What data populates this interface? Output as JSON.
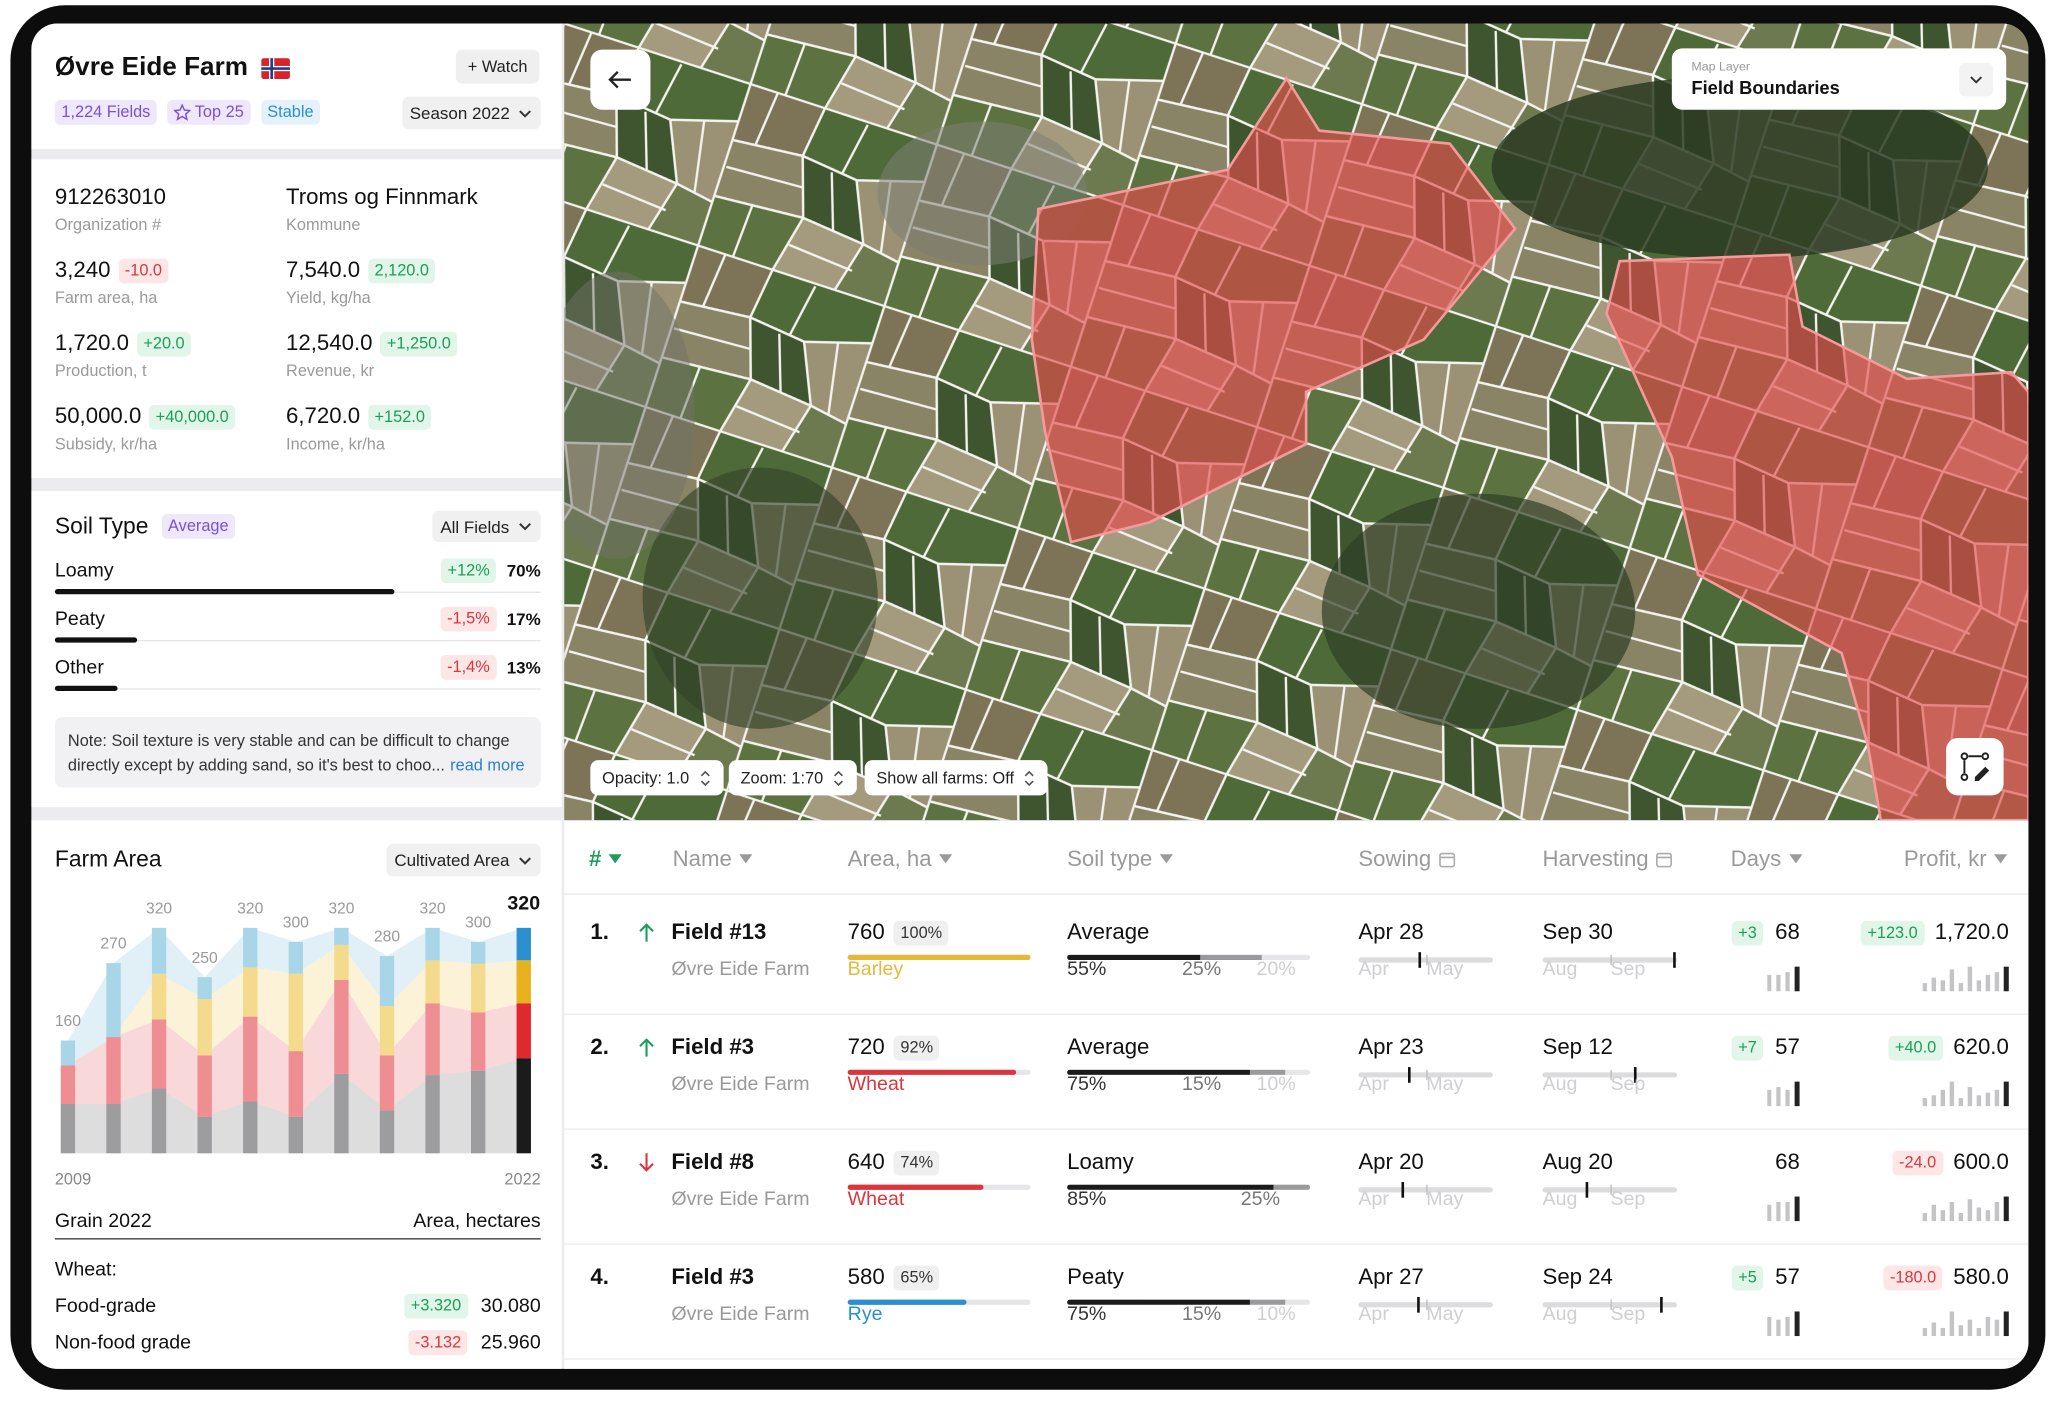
{
  "header": {
    "title": "Øvre Eide Farm",
    "watch": "+ Watch",
    "tags": [
      "1,224 Fields",
      "Top 25",
      "Stable"
    ],
    "season": "Season 2022"
  },
  "stats": [
    {
      "value": "912263010",
      "label": "Organization #"
    },
    {
      "value": "Troms og Finnmark",
      "label": "Kommune"
    },
    {
      "value": "3,240",
      "delta": "-10.0",
      "label": "Farm area, ha"
    },
    {
      "value": "7,540.0",
      "delta": "2,120.0",
      "label": "Yield, kg/ha"
    },
    {
      "value": "1,720.0",
      "delta": "+20.0",
      "label": "Production, t"
    },
    {
      "value": "12,540.0",
      "delta": "+1,250.0",
      "label": "Revenue, kr"
    },
    {
      "value": "50,000.0",
      "delta": "+40,000.0",
      "label": "Subsidy, kr/ha"
    },
    {
      "value": "6,720.0",
      "delta": "+152.0",
      "label": "Income, kr/ha"
    }
  ],
  "soil": {
    "title": "Soil Type",
    "badge": "Average",
    "filter": "All Fields",
    "rows": [
      {
        "name": "Loamy",
        "change": "+12%",
        "share": "70%"
      },
      {
        "name": "Peaty",
        "change": "-1,5%",
        "share": "17%"
      },
      {
        "name": "Other",
        "change": "-1,4%",
        "share": "13%"
      }
    ],
    "note": "Note: Soil texture is very stable and can be difficult to change directly except by adding sand, so it's best to choo...",
    "read_more": "read more"
  },
  "farm_area": {
    "title": "Farm Area",
    "filter": "Cultivated Area",
    "footer_left": "Grain 2022",
    "footer_right": "Area, hectares",
    "group": "Wheat:",
    "rows": [
      {
        "name": "Food-grade",
        "change": "+3.320",
        "value": "30.080"
      },
      {
        "name": "Non-food grade",
        "change": "-3.132",
        "value": "25.960"
      }
    ]
  },
  "chart_data": {
    "type": "bar",
    "stacked": true,
    "categories": [
      "2009",
      null,
      null,
      null,
      null,
      null,
      null,
      null,
      null,
      null,
      "2022"
    ],
    "series": [
      {
        "color": "#9d9d9f",
        "highlight_color": "#1b1b1b",
        "values": [
          70,
          70,
          92,
          52,
          74,
          52,
          113,
          61,
          111,
          117,
          135
        ]
      },
      {
        "color": "#ee8e93",
        "highlight_color": "#e0282e",
        "values": [
          55,
          95,
          98,
          87,
          120,
          93,
          133,
          78,
          102,
          83,
          78
        ]
      },
      {
        "color": "#f4da8c",
        "highlight_color": "#e8b21e",
        "values": [
          0,
          0,
          65,
          80,
          70,
          110,
          50,
          70,
          61,
          69,
          61
        ]
      },
      {
        "color": "#a9d5e8",
        "highlight_color": "#2b8fd0",
        "values": [
          35,
          105,
          65,
          31,
          56,
          45,
          24,
          71,
          46,
          31,
          46
        ]
      }
    ],
    "total_labels": [
      160,
      270,
      320,
      250,
      320,
      300,
      320,
      280,
      320,
      300,
      320
    ],
    "highlight_last": true,
    "ylim": [
      0,
      330
    ]
  },
  "map": {
    "layer_label": "Map Layer",
    "layer": "Field Boundaries",
    "controls": [
      "Opacity: 1.0",
      "Zoom: 1:70",
      "Show all farms: Off"
    ]
  },
  "table": {
    "columns": [
      "#",
      "Name",
      "Area, ha",
      "Soil type",
      "Sowing",
      "Harvesting",
      "Days",
      "Profit, kr"
    ],
    "sow_months": [
      "Apr",
      "May"
    ],
    "harvest_months": [
      "Aug",
      "Sep"
    ],
    "rows": [
      {
        "rank": "1.",
        "trend": "up",
        "name": "Field #13",
        "farm": "Øvre Eide Farm",
        "area": "760",
        "area_pct": "100%",
        "crop": "Barley",
        "crop_color": "#e2b93b",
        "soil": "Average",
        "soil_parts": [
          "55%",
          "25%",
          "20%"
        ],
        "sowing": "Apr 28",
        "harvest": "Sep 30",
        "days_delta": "+3",
        "days": "68",
        "days_bars": [
          6,
          6,
          7,
          9
        ],
        "profit_delta": "+123.0",
        "profit": "1,720.0",
        "profit_bars": [
          3,
          5,
          4,
          8,
          3,
          9,
          4,
          6,
          7,
          9
        ]
      },
      {
        "rank": "2.",
        "trend": "up",
        "name": "Field #3",
        "farm": "Øvre Eide Farm",
        "area": "720",
        "area_pct": "92%",
        "crop": "Wheat",
        "crop_color": "#d9363e",
        "soil": "Average",
        "soil_parts": [
          "75%",
          "15%",
          "10%"
        ],
        "sowing": "Apr 23",
        "harvest": "Sep 12",
        "days_delta": "+7",
        "days": "57",
        "days_bars": [
          6,
          7,
          6,
          9
        ],
        "profit_delta": "+40.0",
        "profit": "620.0",
        "profit_bars": [
          3,
          4,
          6,
          9,
          3,
          7,
          4,
          5,
          6,
          9
        ]
      },
      {
        "rank": "3.",
        "trend": "down",
        "name": "Field #8",
        "farm": "Øvre Eide Farm",
        "area": "640",
        "area_pct": "74%",
        "crop": "Wheat",
        "crop_color": "#d9363e",
        "soil": "Loamy",
        "soil_parts": [
          "85%",
          "25%"
        ],
        "sowing": "Apr 20",
        "harvest": "Aug 20",
        "days": "68",
        "days_bars": [
          6,
          7,
          7,
          9
        ],
        "profit_delta": "-24.0",
        "profit": "600.0",
        "profit_bars": [
          3,
          6,
          4,
          7,
          3,
          8,
          5,
          4,
          7,
          9
        ]
      },
      {
        "rank": "4.",
        "name": "Field #3",
        "farm": "Øvre Eide Farm",
        "area": "580",
        "area_pct": "65%",
        "crop": "Rye",
        "crop_color": "#2b8fd0",
        "soil": "Peaty",
        "soil_parts": [
          "75%",
          "15%",
          "10%"
        ],
        "sowing": "Apr 27",
        "harvest": "Sep 24",
        "days_delta": "+5",
        "days": "57",
        "days_bars": [
          7,
          6,
          7,
          9
        ],
        "profit_delta": "-180.0",
        "profit": "580.0",
        "profit_bars": [
          3,
          5,
          3,
          9,
          4,
          6,
          3,
          7,
          6,
          9
        ]
      }
    ]
  }
}
